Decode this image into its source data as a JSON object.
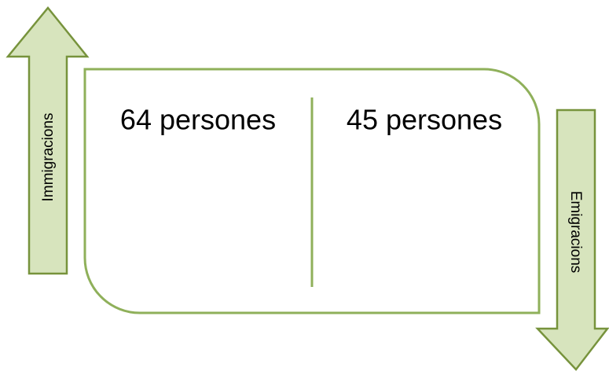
{
  "arrows": [
    {
      "label": "Immigracions"
    },
    {
      "label": "Emigracions"
    }
  ],
  "panels": [
    {
      "text": "64 persones"
    },
    {
      "text": "45 persones"
    }
  ]
}
